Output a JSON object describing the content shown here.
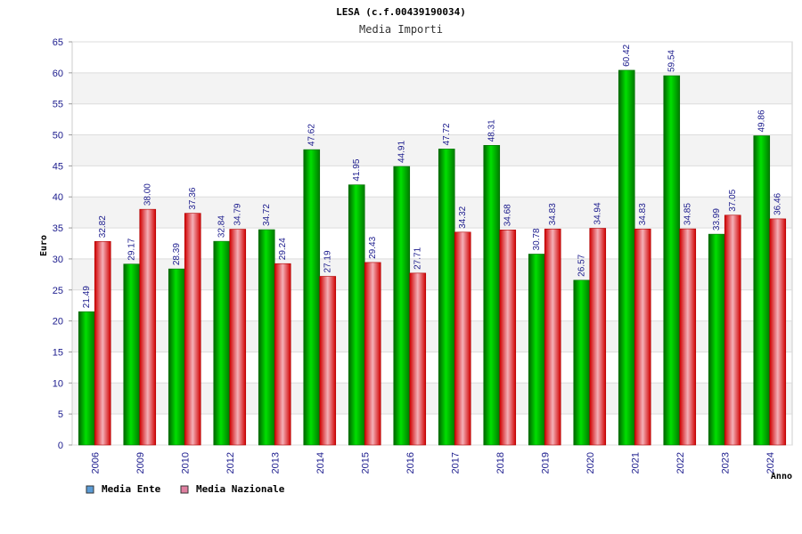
{
  "chart_data": {
    "type": "bar",
    "title": "LESA (c.f.00439190034)",
    "subtitle": "Media Importi",
    "xlabel": "Anno",
    "ylabel": "Euro",
    "ylim": [
      0,
      65
    ],
    "yticks": [
      "0",
      "5",
      "10",
      "15",
      "20",
      "25",
      "30",
      "35",
      "40",
      "45",
      "50",
      "55",
      "60",
      "65"
    ],
    "categories": [
      "2006",
      "2009",
      "2010",
      "2012",
      "2013",
      "2014",
      "2015",
      "2016",
      "2017",
      "2018",
      "2019",
      "2020",
      "2021",
      "2022",
      "2023",
      "2024"
    ],
    "series": [
      {
        "name": "Media Ente",
        "values": [
          21.49,
          29.17,
          28.39,
          32.84,
          34.72,
          47.62,
          41.95,
          44.91,
          47.72,
          48.31,
          30.78,
          26.57,
          60.42,
          59.54,
          33.99,
          49.86
        ],
        "labels": [
          "21.49",
          "29.17",
          "28.39",
          "32.84",
          "34.72",
          "47.62",
          "41.95",
          "44.91",
          "47.72",
          "48.31",
          "30.78",
          "26.57",
          "60.42",
          "59.54",
          "33.99",
          "49.86"
        ],
        "color": "#00c000",
        "legend_color": "#5b9bd5"
      },
      {
        "name": "Media Nazionale",
        "values": [
          32.82,
          38.0,
          37.36,
          34.79,
          29.24,
          27.19,
          29.43,
          27.71,
          34.32,
          34.68,
          34.83,
          34.94,
          34.83,
          34.85,
          37.05,
          36.46
        ],
        "labels": [
          "32.82",
          "38.00",
          "37.36",
          "34.79",
          "29.24",
          "27.19",
          "29.43",
          "27.71",
          "34.32",
          "34.68",
          "34.83",
          "34.94",
          "34.83",
          "34.85",
          "37.05",
          "36.46"
        ],
        "color": "#e00000",
        "legend_color": "#e07fa0"
      }
    ],
    "grid": true,
    "legend_position": "bottom-left"
  }
}
